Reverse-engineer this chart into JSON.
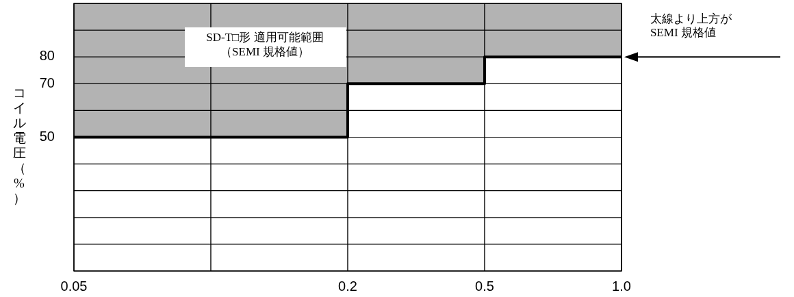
{
  "chart_data": {
    "type": "step",
    "ylabel": "コイル電圧（%）",
    "categories": [
      "0.05",
      null,
      "0.2",
      "0.5",
      "1.0"
    ],
    "series": [
      {
        "color": "#000000",
        "values": [
          50,
          50,
          70,
          80,
          80
        ],
        "lower": [
          50,
          50,
          70,
          80,
          80
        ],
        "upper": [
          100,
          100,
          100,
          100,
          100
        ]
      }
    ],
    "ylim": [
      0,
      100
    ],
    "yticks": [
      {
        "value": 0,
        "label": null
      },
      {
        "value": 10,
        "label": null
      },
      {
        "value": 20,
        "label": null
      },
      {
        "value": 30,
        "label": null
      },
      {
        "value": 40,
        "label": null
      },
      50,
      {
        "value": 60,
        "label": null
      },
      70,
      80,
      {
        "value": 90,
        "label": null
      },
      {
        "value": 100,
        "label": null
      }
    ],
    "grid": true,
    "annotations": [
      "SD-T□形 適用可能範囲",
      "（SEMI 規格値）",
      {
        "text": "太線より上方が\nSEMI 規格値",
        "x": "1.0",
        "y": 80
      }
    ]
  }
}
